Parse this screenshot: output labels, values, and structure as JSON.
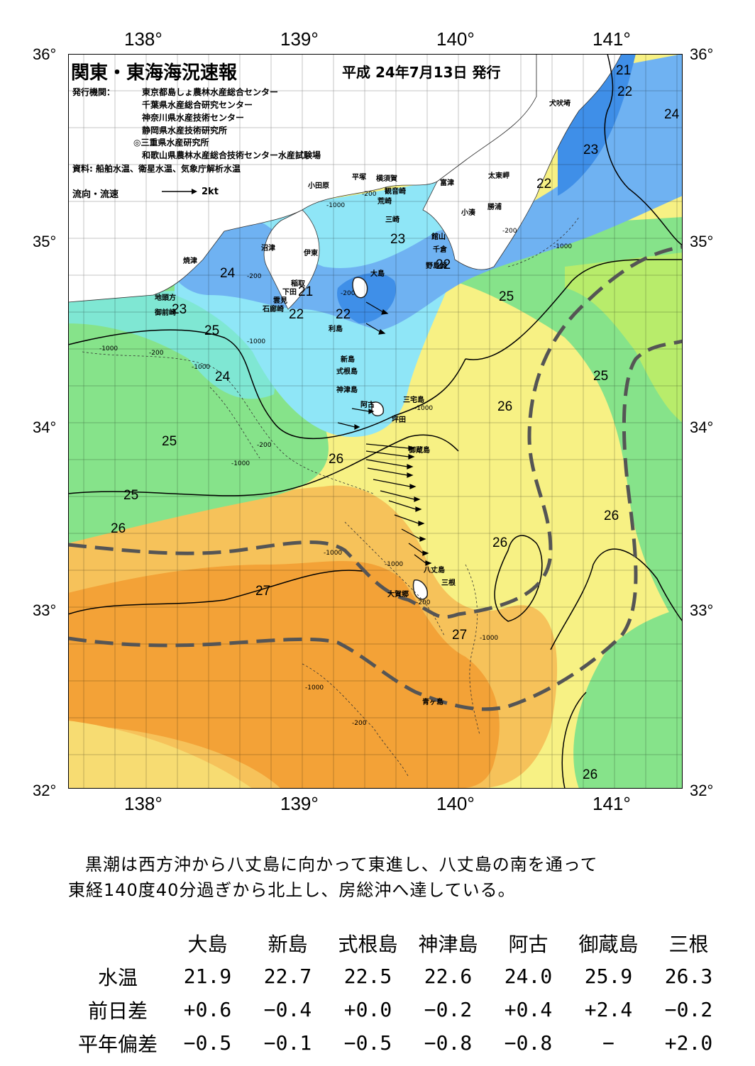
{
  "map": {
    "title": "関東・東海海況速報",
    "issued": "平成 24年7月13日 発行",
    "org_label": "発行機関：",
    "orgs": [
      "東京都島しょ農林水産総合センター",
      "千葉県水産総合研究センター",
      "神奈川県水産技術センター",
      "静岡県水産技術研究所",
      "◎三重県水産研究所",
      "和歌山県農林水産総合技術センター水産試験場"
    ],
    "source": "資料: 船舶水温、衛星水温、気象庁解析水温",
    "legend_label": "流向・流速",
    "legend_speed": "2kt",
    "lon_ticks": [
      "138°",
      "139°",
      "140°",
      "141°"
    ],
    "lat_ticks": [
      "36°",
      "35°",
      "34°",
      "33°",
      "32°"
    ],
    "isotherm_labels": [
      "21",
      "22",
      "24",
      "23",
      "22",
      "23",
      "22",
      "24",
      "23",
      "21",
      "22",
      "22",
      "25",
      "25",
      "24",
      "25",
      "26",
      "25",
      "26",
      "26",
      "25",
      "26",
      "26",
      "27",
      "27",
      "26"
    ],
    "depth_labels": [
      "-200",
      "-1000",
      "-200",
      "-200",
      "-1000",
      "-200",
      "-1000",
      "-200",
      "-1000",
      "-1000",
      "-1000",
      "-1000",
      "-200",
      "-1000",
      "-200",
      "-1000",
      "-1000",
      "-1000",
      "-200"
    ],
    "places": [
      "犬吠埼",
      "太東岬",
      "勝浦",
      "小湊",
      "富津",
      "平塚",
      "横須賀",
      "観音崎",
      "荒崎",
      "小田原",
      "三崎",
      "館山",
      "千倉",
      "野島崎",
      "沼津",
      "伊東",
      "焼津",
      "大島",
      "稲取",
      "下田",
      "雲見",
      "石廊崎",
      "地頭方",
      "御前崎",
      "利島",
      "新島",
      "式根島",
      "神津島",
      "三宅島",
      "阿古",
      "坪田",
      "御蔵島",
      "八丈島",
      "三根",
      "大賀郷",
      "青ヶ島"
    ],
    "colors": {
      "cold_blue": "#3f8fe8",
      "blue": "#6fb2f2",
      "cyan": "#8fe6f7",
      "aqua": "#7fe7d3",
      "green": "#86e38a",
      "lime": "#b8ec6b",
      "yellow": "#f7f184",
      "light_orange": "#f6d46a",
      "orange": "#f5b048",
      "deep_orange": "#f39a2e",
      "kuroshio_axis": "#555555"
    }
  },
  "comment": {
    "line1": "黒潮は西方沖から八丈島に向かって東進し、八丈島の南を通って",
    "line2": "東経140度40分過ぎから北上し、房総沖へ達している。"
  },
  "table": {
    "stations": [
      "大島",
      "新島",
      "式根島",
      "神津島",
      "阿古",
      "御蔵島",
      "三根"
    ],
    "rows": [
      {
        "label": "水温",
        "values": [
          "21.9",
          "22.7",
          "22.5",
          "22.6",
          "24.0",
          "25.9",
          "26.3"
        ]
      },
      {
        "label": "前日差",
        "values": [
          "+0.6",
          "−0.4",
          "+0.0",
          "−0.2",
          "+0.4",
          "+2.4",
          "−0.2"
        ]
      },
      {
        "label": "平年偏差",
        "values": [
          "−0.5",
          "−0.1",
          "−0.5",
          "−0.8",
          "−0.8",
          "−",
          "+2.0"
        ]
      }
    ]
  }
}
